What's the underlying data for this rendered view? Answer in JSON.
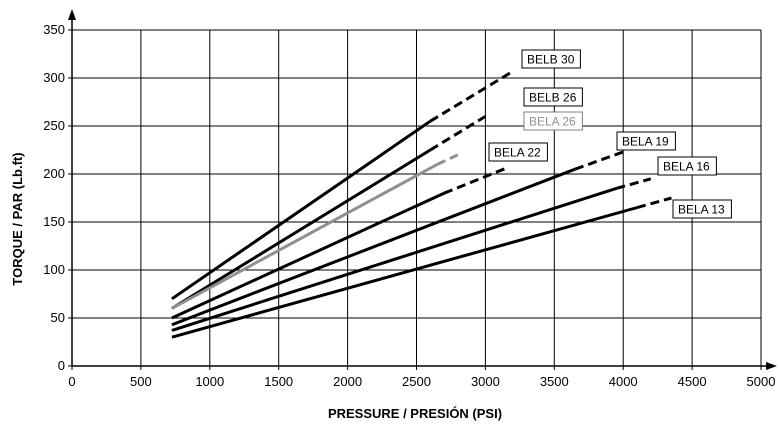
{
  "chart_data": {
    "type": "line",
    "title": "",
    "xlabel": "PRESSURE  / PRESIÓN (PSI)",
    "ylabel": "TORQUE / PAR (Lb.ft)",
    "xlim": [
      0,
      5000
    ],
    "ylim": [
      0,
      350
    ],
    "x_ticks": [
      "0",
      "500",
      "1000",
      "1500",
      "2000",
      "2500",
      "3000",
      "3500",
      "4000",
      "4500",
      "5000"
    ],
    "y_ticks": [
      "0",
      "50",
      "100",
      "150",
      "200",
      "250",
      "300",
      "350"
    ],
    "grid": true,
    "series": [
      {
        "name": "BELB 30",
        "color": "#000000",
        "solid": [
          [
            725,
            70
          ],
          [
            2600,
            255
          ]
        ],
        "dashed": [
          [
            2600,
            255
          ],
          [
            3200,
            307
          ]
        ]
      },
      {
        "name": "BELB 26",
        "color": "#000000",
        "solid": [
          [
            725,
            60
          ],
          [
            2600,
            225
          ]
        ],
        "dashed": [
          [
            2600,
            225
          ],
          [
            3000,
            260
          ]
        ]
      },
      {
        "name": "BELA 26",
        "color": "#909090",
        "solid": [
          [
            725,
            60
          ],
          [
            2650,
            210
          ]
        ],
        "dashed": [
          [
            2650,
            210
          ],
          [
            2800,
            220
          ]
        ]
      },
      {
        "name": "BELA 22",
        "color": "#000000",
        "solid": [
          [
            725,
            50
          ],
          [
            2700,
            180
          ]
        ],
        "dashed": [
          [
            2700,
            180
          ],
          [
            3150,
            206
          ]
        ]
      },
      {
        "name": "BELA 19",
        "color": "#000000",
        "solid": [
          [
            725,
            43
          ],
          [
            3650,
            205
          ]
        ],
        "dashed": [
          [
            3650,
            205
          ],
          [
            4000,
            223
          ]
        ]
      },
      {
        "name": "BELA 16",
        "color": "#000000",
        "solid": [
          [
            725,
            37
          ],
          [
            3950,
            185
          ]
        ],
        "dashed": [
          [
            3950,
            185
          ],
          [
            4200,
            195
          ]
        ]
      },
      {
        "name": "BELA 13",
        "color": "#000000",
        "solid": [
          [
            725,
            30
          ],
          [
            4100,
            165
          ]
        ],
        "dashed": [
          [
            4100,
            165
          ],
          [
            4350,
            175
          ]
        ]
      }
    ]
  }
}
